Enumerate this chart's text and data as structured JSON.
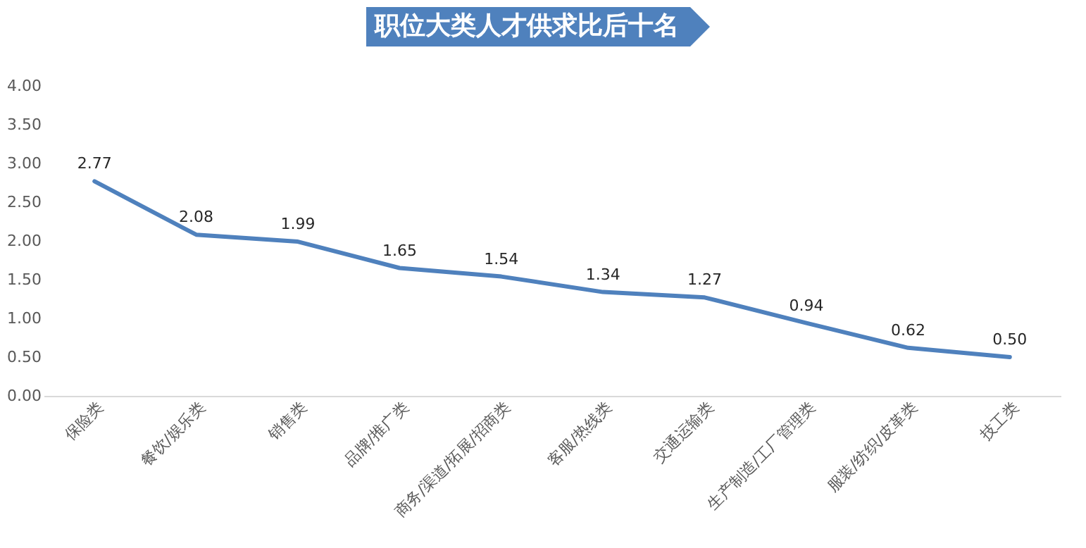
{
  "chart_data": {
    "type": "line",
    "title": "职位大类人才供求比后十名",
    "categories": [
      "保险类",
      "餐饮/娱乐类",
      "销售类",
      "品牌/推广类",
      "商务/渠道/拓展/招商类",
      "客服/热线类",
      "交通运输类",
      "生产制造/工厂管理类",
      "服装/纺织/皮革类",
      "技工类"
    ],
    "series": [
      {
        "color": "#4f81bd",
        "values": [
          2.77,
          2.08,
          1.99,
          1.65,
          1.54,
          1.34,
          1.27,
          0.94,
          0.62,
          0.5
        ]
      }
    ],
    "ylim": [
      0,
      4
    ],
    "yticks": [
      {
        "value": 0,
        "label": "0.00"
      },
      {
        "value": 0.5,
        "label": "0.50"
      },
      {
        "value": 1,
        "label": "1.00"
      },
      {
        "value": 1.5,
        "label": "1.50"
      },
      {
        "value": 2,
        "label": "2.00"
      },
      {
        "value": 2.5,
        "label": "2.50"
      },
      {
        "value": 3,
        "label": "3.00"
      },
      {
        "value": 3.5,
        "label": "3.50"
      },
      {
        "value": 4,
        "label": "4.00"
      }
    ],
    "value_labels": [
      "2.77",
      "2.08",
      "1.99",
      "1.65",
      "1.54",
      "1.34",
      "1.27",
      "0.94",
      "0.62",
      "0.50"
    ],
    "grid": false,
    "marker": "none",
    "line_style": "solid"
  }
}
